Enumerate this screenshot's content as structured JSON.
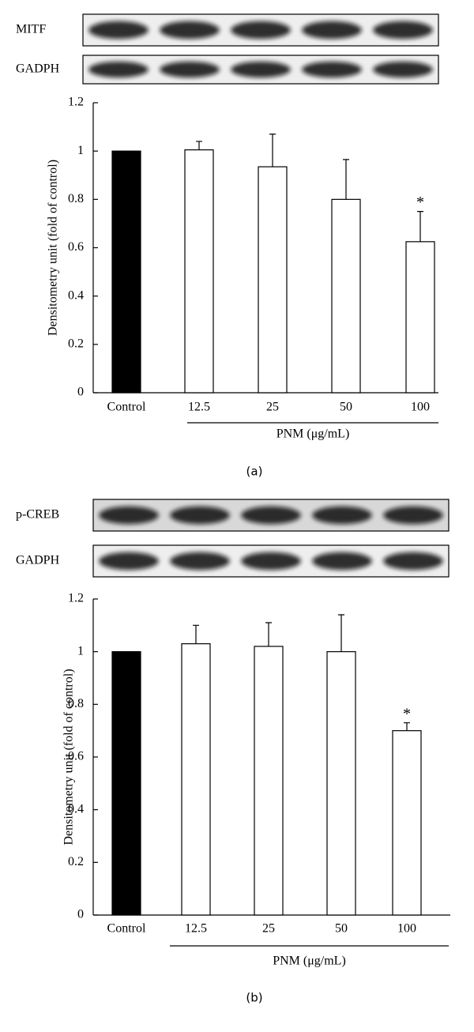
{
  "chart_data": [
    {
      "type": "bar",
      "panel_label": "(a)",
      "blot_labels": [
        "MITF",
        "GADPH"
      ],
      "categories": [
        "Control",
        "12.5",
        "25",
        "50",
        "100"
      ],
      "values": [
        1,
        1.005,
        0.935,
        0.8,
        0.625
      ],
      "errors": [
        null,
        0.035,
        0.135,
        0.165,
        0.125
      ],
      "asterisks": [
        null,
        null,
        null,
        null,
        "*"
      ],
      "colors": [
        "#000000",
        "#ffffff",
        "#ffffff",
        "#ffffff",
        "#ffffff"
      ],
      "ylabel": "Densitometry unit (fold of control)",
      "xlabel": "PNM (μg/mL)",
      "ylim": [
        0,
        1.2
      ],
      "yticks": [
        0,
        0.2,
        0.4,
        0.6,
        0.8,
        1,
        1.2
      ]
    },
    {
      "type": "bar",
      "panel_label": "(b)",
      "blot_labels": [
        "p-CREB",
        "GADPH"
      ],
      "categories": [
        "Control",
        "12.5",
        "25",
        "50",
        "100"
      ],
      "values": [
        1,
        1.03,
        1.02,
        1.0,
        0.7
      ],
      "errors": [
        null,
        0.07,
        0.09,
        0.14,
        0.03
      ],
      "asterisks": [
        null,
        null,
        null,
        null,
        "*"
      ],
      "colors": [
        "#000000",
        "#ffffff",
        "#ffffff",
        "#ffffff",
        "#ffffff"
      ],
      "ylabel": "Densitometry unit (fold of control)",
      "xlabel": "PNM (μg/mL)",
      "ylim": [
        0,
        1.2
      ],
      "yticks": [
        0,
        0.2,
        0.4,
        0.6,
        0.8,
        1,
        1.2
      ]
    }
  ]
}
